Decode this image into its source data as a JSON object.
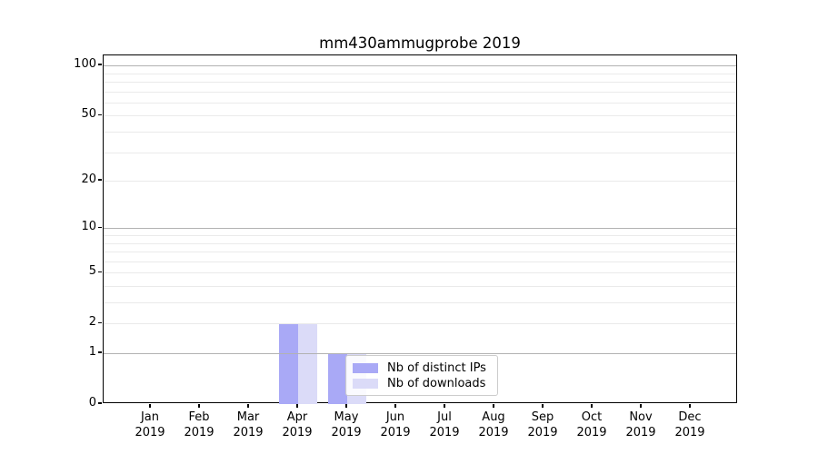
{
  "chart_data": {
    "type": "bar",
    "title": "mm430ammugprobe 2019",
    "categories": [
      "Jan",
      "Feb",
      "Mar",
      "Apr",
      "May",
      "Jun",
      "Jul",
      "Aug",
      "Sep",
      "Oct",
      "Nov",
      "Dec"
    ],
    "category_year": "2019",
    "series": [
      {
        "name": "Nb of distinct IPs",
        "color": "#a9a9f6",
        "values": [
          0,
          0,
          0,
          2,
          1,
          0,
          0,
          0,
          0,
          0,
          0,
          0
        ]
      },
      {
        "name": "Nb of downloads",
        "color": "#dbdbf8",
        "values": [
          0,
          0,
          0,
          2,
          1,
          0,
          0,
          0,
          0,
          0,
          0,
          0
        ]
      }
    ],
    "yscale": "log1p",
    "ylim": [
      0,
      115
    ],
    "yticks": [
      0,
      1,
      2,
      5,
      10,
      20,
      50,
      100
    ],
    "major_gridlines": [
      1,
      10,
      100
    ],
    "minor_gridlines": [
      2,
      3,
      4,
      5,
      6,
      7,
      8,
      9,
      20,
      30,
      40,
      50,
      60,
      70,
      80,
      90
    ],
    "grid": "on",
    "legend_position": "inside lower center",
    "colors": {
      "major_grid": "#b2b2b2",
      "minor_grid": "#eaeaea",
      "spine": "#000000",
      "legend_border": "#cccccc"
    }
  }
}
